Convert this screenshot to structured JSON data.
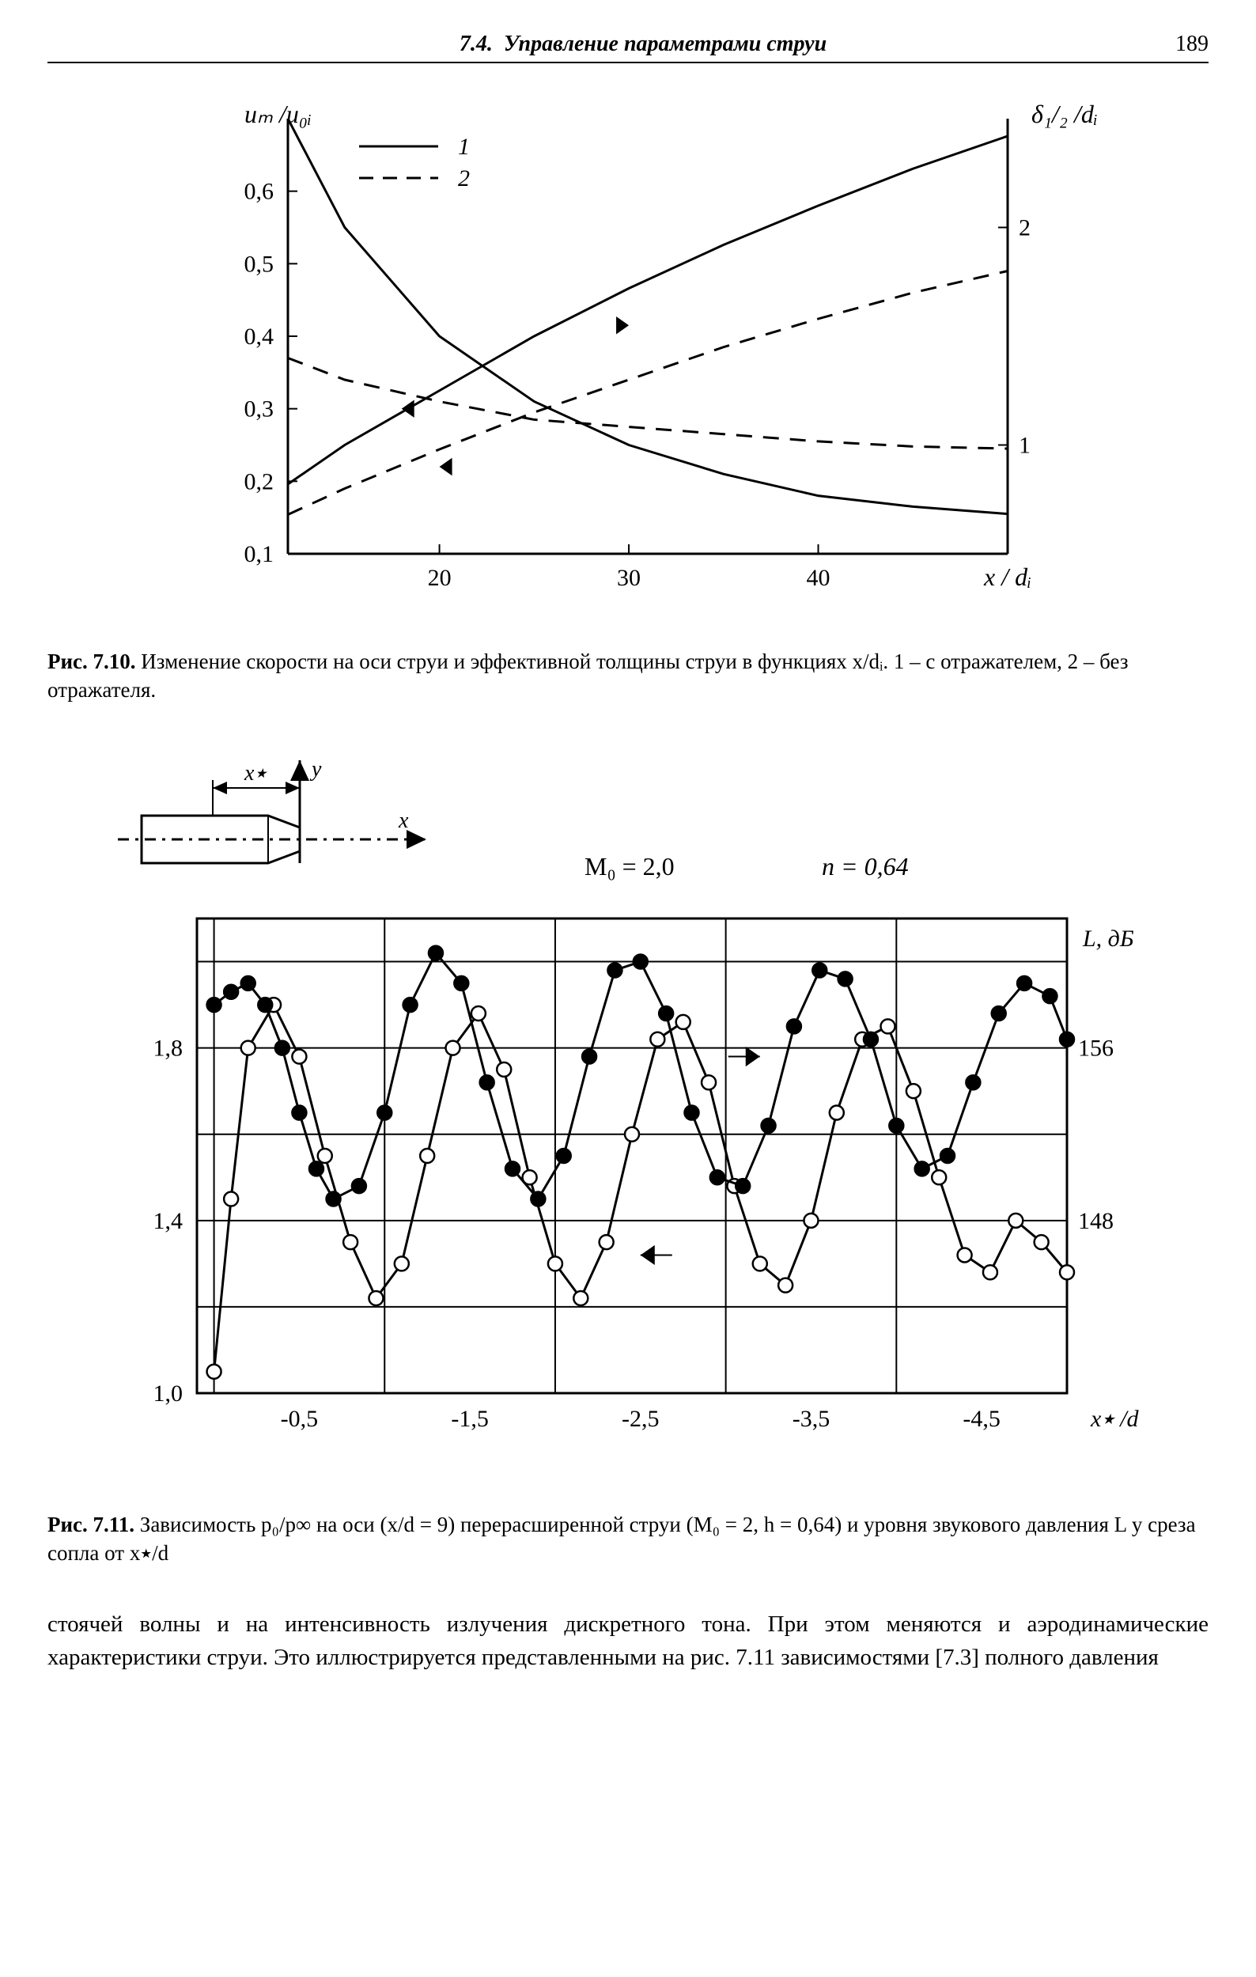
{
  "header": {
    "section": "7.4.",
    "title": "Управление параметрами струи",
    "page": "189"
  },
  "fig710": {
    "ylabel_left": "uₘ /u₀ᵢ",
    "ylabel_right": "δ₁/₂ /dᵢ",
    "xlabel": "x / dᵢ",
    "legend1": "1",
    "legend2": "2",
    "xlim": [
      12,
      50
    ],
    "ylim_left": [
      0.1,
      0.7
    ],
    "ylim_right": [
      0.5,
      2.5
    ],
    "xticks": [
      20,
      30,
      40
    ],
    "yticks_left": [
      0.1,
      0.2,
      0.3,
      0.4,
      0.5,
      0.6
    ],
    "yticks_right": [
      1,
      2
    ],
    "series": {
      "decay_solid": {
        "x": [
          12,
          15,
          20,
          25,
          30,
          35,
          40,
          45,
          50
        ],
        "y": [
          0.7,
          0.55,
          0.4,
          0.31,
          0.25,
          0.21,
          0.18,
          0.165,
          0.155
        ],
        "dash": false
      },
      "decay_dashed": {
        "x": [
          12,
          15,
          20,
          25,
          30,
          35,
          40,
          45,
          50
        ],
        "y": [
          0.37,
          0.34,
          0.31,
          0.285,
          0.275,
          0.265,
          0.255,
          0.248,
          0.245
        ],
        "dash": true
      },
      "rise_solid": {
        "x": [
          12,
          15,
          20,
          25,
          30,
          35,
          40,
          45,
          50
        ],
        "yr": [
          0.82,
          1.0,
          1.25,
          1.5,
          1.72,
          1.92,
          2.1,
          2.27,
          2.42
        ],
        "dash": false
      },
      "rise_dashed": {
        "x": [
          12,
          15,
          20,
          25,
          30,
          35,
          40,
          45,
          50
        ],
        "yr": [
          0.68,
          0.8,
          0.98,
          1.15,
          1.3,
          1.45,
          1.58,
          1.7,
          1.8
        ],
        "dash": true
      }
    },
    "line_color": "#000000",
    "line_width": 3,
    "caption_label": "Рис. 7.10.",
    "caption_text": "Изменение скорости на оси струи и эффективной толщины струи в функциях x/dᵢ.  1 – с отражателем,  2 – без отражателя."
  },
  "fig711": {
    "M0_label": "M₀ = 2,0",
    "n_label": "n = 0,64",
    "L_label": "L, дБ",
    "xlabel": "x٭ /d",
    "diagram_xlabel": "x٭",
    "diagram_ylabel": "y",
    "diagram_x_arrow": "x",
    "xlim": [
      -0.1,
      5.0
    ],
    "ylim_left": [
      1.0,
      2.1
    ],
    "ylim_right": [
      140,
      162
    ],
    "xticks": [
      -0.5,
      -1.5,
      -2.5,
      -3.5,
      -4.5
    ],
    "xticks_pos": [
      0.5,
      1.5,
      2.5,
      3.5,
      4.5
    ],
    "yticks_left": [
      1.0,
      1.4,
      1.8
    ],
    "yticks_right": [
      148,
      156
    ],
    "grid_x": [
      0,
      1,
      2,
      3,
      4,
      5
    ],
    "grid_y_left": [
      1.0,
      1.2,
      1.4,
      1.6,
      1.8,
      2.0
    ],
    "open_series": {
      "x": [
        0.0,
        0.1,
        0.2,
        0.35,
        0.5,
        0.65,
        0.8,
        0.95,
        1.1,
        1.25,
        1.4,
        1.55,
        1.7,
        1.85,
        2.0,
        2.15,
        2.3,
        2.45,
        2.6,
        2.75,
        2.9,
        3.05,
        3.2,
        3.35,
        3.5,
        3.65,
        3.8,
        3.95,
        4.1,
        4.25,
        4.4,
        4.55,
        4.7,
        4.85,
        5.0
      ],
      "y": [
        1.05,
        1.45,
        1.8,
        1.9,
        1.78,
        1.55,
        1.35,
        1.22,
        1.3,
        1.55,
        1.8,
        1.88,
        1.75,
        1.5,
        1.3,
        1.22,
        1.35,
        1.6,
        1.82,
        1.86,
        1.72,
        1.48,
        1.3,
        1.25,
        1.4,
        1.65,
        1.82,
        1.85,
        1.7,
        1.5,
        1.32,
        1.28,
        1.4,
        1.35,
        1.28
      ]
    },
    "filled_series": {
      "x": [
        0.0,
        0.1,
        0.2,
        0.3,
        0.4,
        0.5,
        0.6,
        0.7,
        0.85,
        1.0,
        1.15,
        1.3,
        1.45,
        1.6,
        1.75,
        1.9,
        2.05,
        2.2,
        2.35,
        2.5,
        2.65,
        2.8,
        2.95,
        3.1,
        3.25,
        3.4,
        3.55,
        3.7,
        3.85,
        4.0,
        4.15,
        4.3,
        4.45,
        4.6,
        4.75,
        4.9,
        5.0
      ],
      "y": [
        1.9,
        1.93,
        1.95,
        1.9,
        1.8,
        1.65,
        1.52,
        1.45,
        1.48,
        1.65,
        1.9,
        2.02,
        1.95,
        1.72,
        1.52,
        1.45,
        1.55,
        1.78,
        1.98,
        2.0,
        1.88,
        1.65,
        1.5,
        1.48,
        1.62,
        1.85,
        1.98,
        1.96,
        1.82,
        1.62,
        1.52,
        1.55,
        1.72,
        1.88,
        1.95,
        1.92,
        1.82
      ]
    },
    "marker_r": 9,
    "line_width": 3,
    "line_color": "#000000",
    "caption_label": "Рис. 7.11.",
    "caption_text": "Зависимость p₀/p∞ на оси (x/d = 9) перерасширенной струи (M₀ = 2, h = 0,64) и уровня звукового давления L у среза сопла от x٭/d"
  },
  "body": "стоячей волны и на интенсивность излучения дискретного тона. При этом меняются и аэродинамические характеристики струи. Это иллюстрируется представленными на рис. 7.11 зависимостями [7.3] полного давления"
}
